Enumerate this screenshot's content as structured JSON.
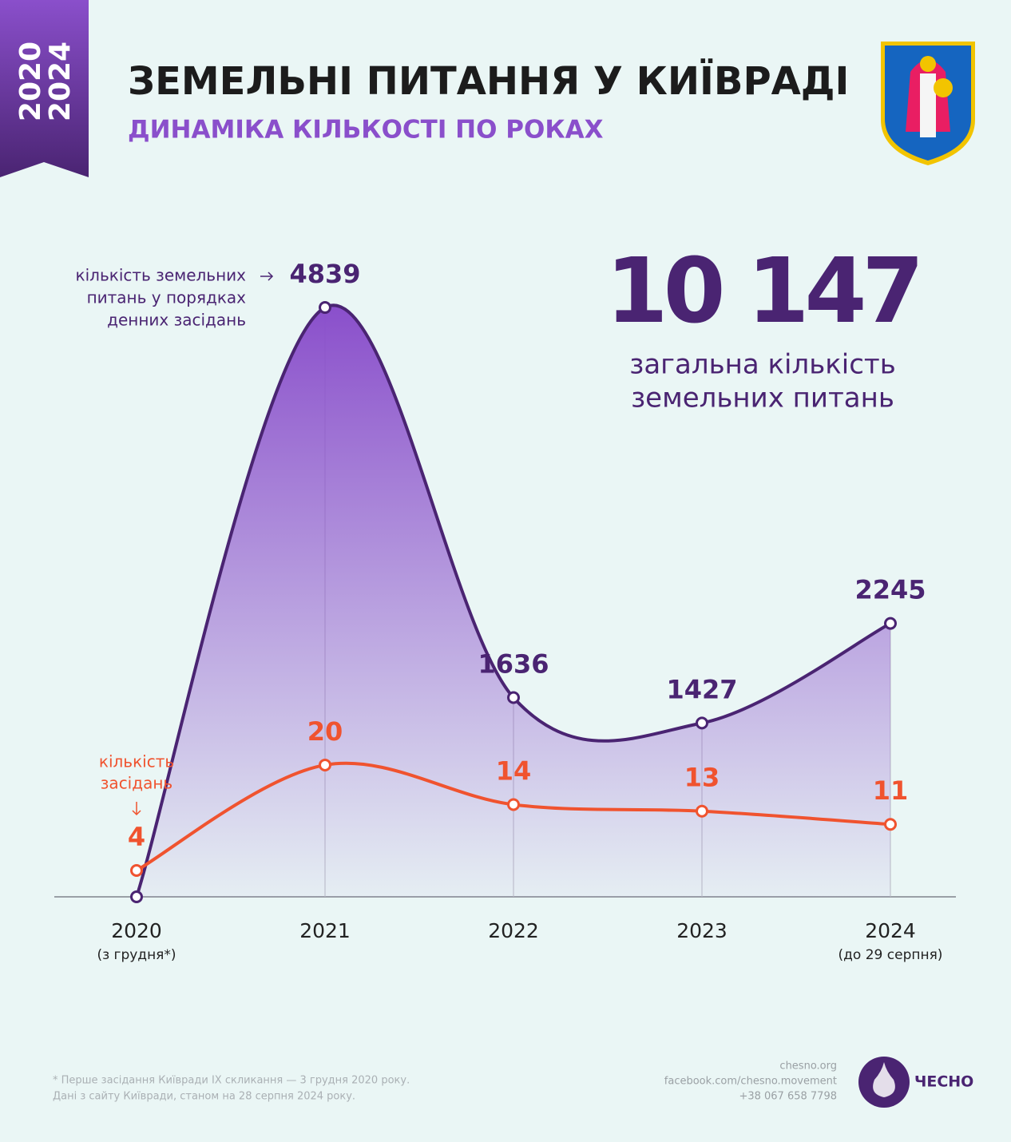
{
  "badge": [
    "2020",
    "2024"
  ],
  "header": {
    "title": "ЗЕМЕЛЬНІ ПИТАННЯ У КИЇВРАДІ",
    "subtitle": "ДИНАМІКА КІЛЬКОСТІ ПО РОКАХ"
  },
  "chart_data": {
    "type": "line",
    "categories": [
      "2020",
      "2021",
      "2022",
      "2023",
      "2024"
    ],
    "category_notes": [
      "(з грудня*)",
      null,
      null,
      null,
      "(до 29 серпня)"
    ],
    "series": [
      {
        "color": "#4a2472",
        "fill": "#8a4fcb",
        "values": [
          0,
          4839,
          1636,
          1427,
          2245
        ],
        "value_labels": [
          null,
          "4839",
          "1636",
          "1427",
          "2245"
        ]
      },
      {
        "color": "#f0532f",
        "axis": "y2",
        "values": [
          4,
          20,
          14,
          13,
          11
        ]
      }
    ],
    "ylim": [
      0,
      5000
    ],
    "y2lim": [
      0,
      92.4
    ],
    "annotations": [
      {
        "lines": [
          "кількість земельних",
          "питань у порядках",
          "денних засідань"
        ],
        "color": "#4a2472"
      },
      {
        "lines": [
          "кількість",
          "засідань"
        ],
        "color": "#f0532f"
      }
    ],
    "total": {
      "value": 10147,
      "label": "10 147"
    },
    "total_caption": [
      "загальна кількість",
      "земельних питань"
    ]
  },
  "footer": {
    "notes": [
      "*  Перше засідання Київради IX скликання — 3 грудня 2020 року.",
      "Дані з сайту Київради, станом на 28 серпня 2024 року."
    ],
    "contacts": [
      "chesno.org",
      "facebook.com/chesno.movement",
      "+38 067 658 7798"
    ],
    "logo": "ЧЕСНО"
  }
}
